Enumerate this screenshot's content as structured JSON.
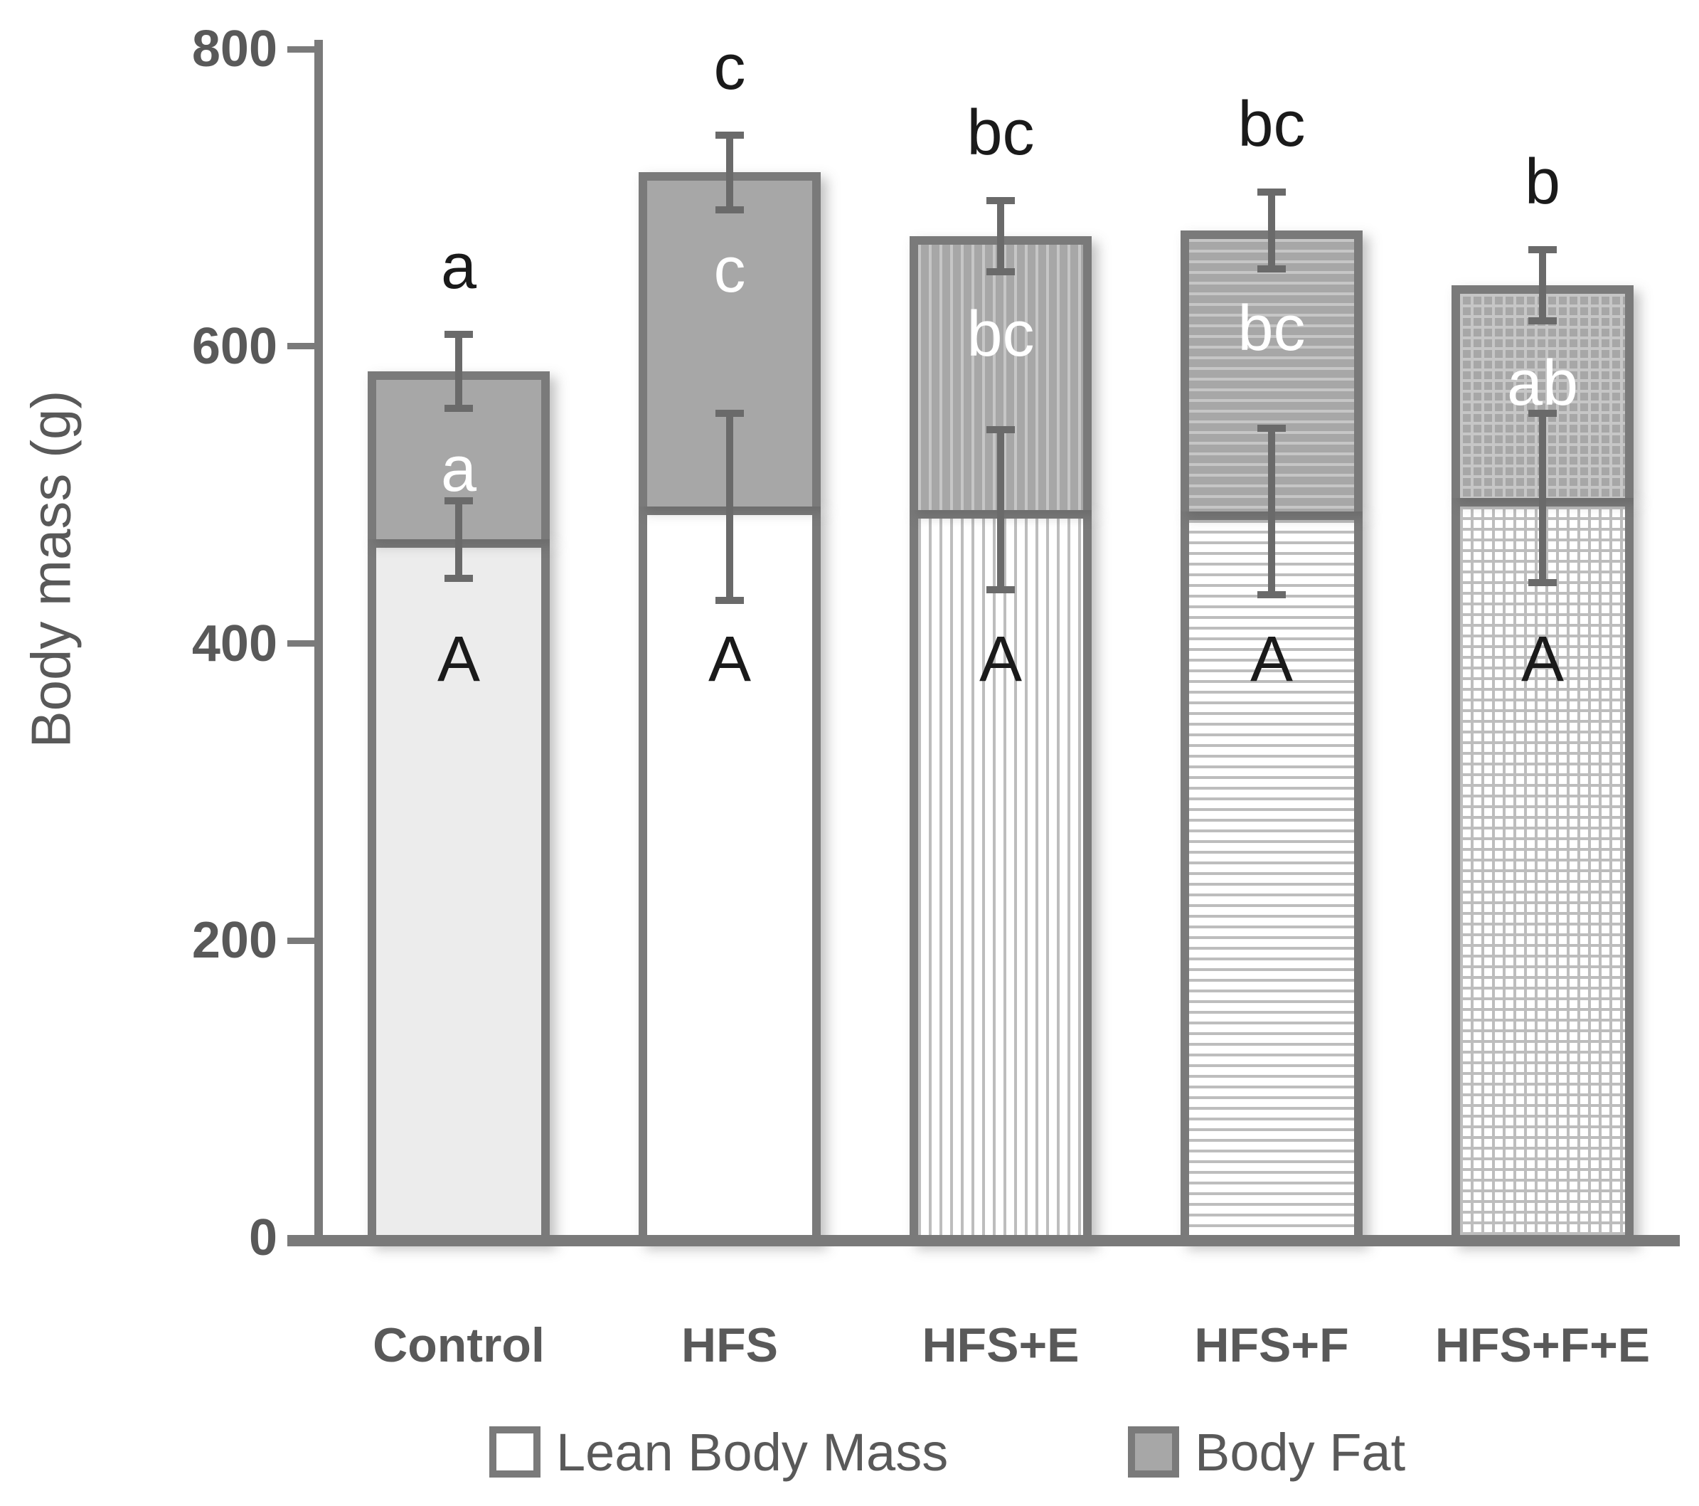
{
  "chart_data": {
    "type": "bar",
    "stacked": true,
    "title": "",
    "xlabel": "",
    "ylabel": "Body mass (g)",
    "ylim": [
      0,
      800
    ],
    "yticks": [
      800,
      600,
      400,
      200,
      0
    ],
    "grid": false,
    "legend_position": "bottom",
    "categories": [
      "Control",
      "HFS",
      "HFS+E",
      "HFS+F",
      "HFS+F+E"
    ],
    "series": [
      {
        "name": "Lean Body Mass",
        "values": [
          470,
          492,
          490,
          489,
          498
        ],
        "error": [
          26,
          63,
          54,
          56,
          57
        ],
        "letters": [
          "A",
          "A",
          "A",
          "A",
          "A"
        ],
        "fills": [
          "solid-light",
          "solid-white",
          "stripes-vertical",
          "stripes-horizontal",
          "grid"
        ]
      },
      {
        "name": "Body Fat",
        "values": [
          113,
          225,
          184,
          189,
          143
        ],
        "error": [
          25,
          25,
          24,
          26,
          24
        ],
        "letters": [
          "a",
          "c",
          "bc",
          "bc",
          "ab"
        ],
        "fills": [
          "solid-gray",
          "solid-gray",
          "stripes-vertical-gray",
          "stripes-horizontal-gray",
          "grid-gray"
        ]
      }
    ],
    "stack_totals": [
      583,
      717,
      674,
      678,
      641
    ],
    "total_letters": [
      "a",
      "c",
      "bc",
      "bc",
      "b"
    ]
  },
  "colors": {
    "text": "#595959",
    "axis": "#7a7a7a",
    "bar_border": "#7a7a7a",
    "body_fat_fill": "#a7a7a7",
    "control_lean_fill": "#ececec",
    "stripe_on_white": "#bdbdbd",
    "stripe_on_gray": "#c6c6c6",
    "error_bar": "#6a6a6a",
    "letter_black": "#1a1a1a",
    "letter_white": "#ffffff"
  }
}
